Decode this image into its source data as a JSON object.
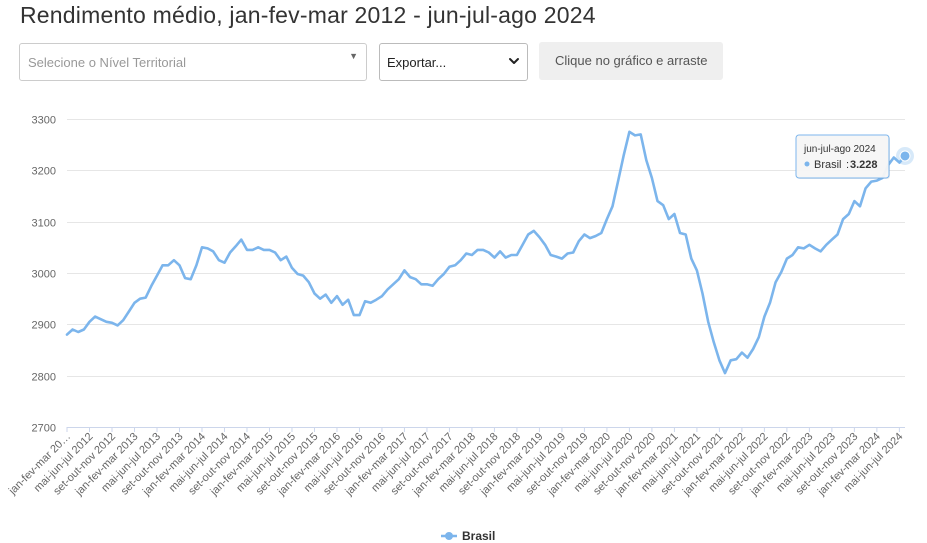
{
  "title": "Rendimento médio, jan-fev-mar 2012 - jun-jul-ago 2024",
  "controls": {
    "level_placeholder": "Selecione o Nível Territorial",
    "export_value": "Exportar...",
    "drag_hint": "Clique no gráfico e arraste"
  },
  "colors": {
    "series": "#7cb5ec",
    "grid": "#e6e6e6",
    "text": "#333333"
  },
  "tooltip": {
    "period": "jun-jul-ago 2024",
    "series": "Brasil",
    "value": "3.228"
  },
  "chart_data": {
    "type": "line",
    "title": "Rendimento médio, jan-fev-mar 2012 - jun-jul-ago 2024",
    "ylim": [
      2700,
      3300
    ],
    "yticks": [
      "2700",
      "2800",
      "2900",
      "3000",
      "3100",
      "3200",
      "3300"
    ],
    "grid": true,
    "legend": "bottom-center",
    "xtick_labels": [
      "jan-fev-mar 20…",
      "mai-jun-jul 2012",
      "set-out-nov 2012",
      "jan-fev-mar 2013",
      "mai-jun-jul 2013",
      "set-out-nov 2013",
      "jan-fev-mar 2014",
      "mai-jun-jul 2014",
      "set-out-nov 2014",
      "jan-fev-mar 2015",
      "mai-jun-jul 2015",
      "set-out-nov 2015",
      "jan-fev-mar 2016",
      "mai-jun-jul 2016",
      "set-out-nov 2016",
      "jan-fev-mar 2017",
      "mai-jun-jul 2017",
      "set-out-nov 2017",
      "jan-fev-mar 2018",
      "mai-jun-jul 2018",
      "set-out-nov 2018",
      "jan-fev-mar 2019",
      "mai-jun-jul 2019",
      "set-out-nov 2019",
      "jan-fev-mar 2020",
      "mai-jun-jul 2020",
      "set-out-nov 2020",
      "jan-fev-mar 2021",
      "mai-jun-jul 2021",
      "set-out-nov 2021",
      "jan-fev-mar 2022",
      "mai-jun-jul 2022",
      "set-out-nov 2022",
      "jan-fev-mar 2023",
      "mai-jun-jul 2023",
      "set-out-nov 2023",
      "jan-fev-mar 2024",
      "mai-jun-jul 2024"
    ],
    "series": [
      {
        "name": "Brasil",
        "values": [
          2880,
          2890,
          2885,
          2890,
          2905,
          2915,
          2910,
          2905,
          2903,
          2898,
          2908,
          2925,
          2942,
          2950,
          2952,
          2975,
          2995,
          3015,
          3015,
          3025,
          3015,
          2990,
          2988,
          3015,
          3050,
          3048,
          3042,
          3025,
          3020,
          3040,
          3052,
          3065,
          3045,
          3045,
          3050,
          3045,
          3045,
          3040,
          3025,
          3032,
          3010,
          2998,
          2995,
          2982,
          2960,
          2950,
          2958,
          2942,
          2955,
          2938,
          2948,
          2918,
          2918,
          2945,
          2942,
          2948,
          2955,
          2968,
          2978,
          2988,
          3005,
          2992,
          2988,
          2978,
          2978,
          2975,
          2988,
          2998,
          3012,
          3015,
          3025,
          3038,
          3035,
          3045,
          3045,
          3040,
          3030,
          3042,
          3030,
          3035,
          3035,
          3055,
          3075,
          3082,
          3070,
          3055,
          3035,
          3032,
          3028,
          3038,
          3040,
          3062,
          3075,
          3068,
          3072,
          3078,
          3105,
          3130,
          3180,
          3230,
          3275,
          3268,
          3270,
          3220,
          3185,
          3140,
          3132,
          3105,
          3115,
          3078,
          3075,
          3028,
          3005,
          2960,
          2905,
          2865,
          2830,
          2805,
          2830,
          2832,
          2845,
          2835,
          2852,
          2875,
          2915,
          2942,
          2982,
          3002,
          3028,
          3035,
          3050,
          3048,
          3055,
          3048,
          3042,
          3055,
          3065,
          3075,
          3105,
          3115,
          3140,
          3130,
          3165,
          3178,
          3180,
          3185,
          3210,
          3225,
          3215,
          3228
        ]
      }
    ]
  }
}
